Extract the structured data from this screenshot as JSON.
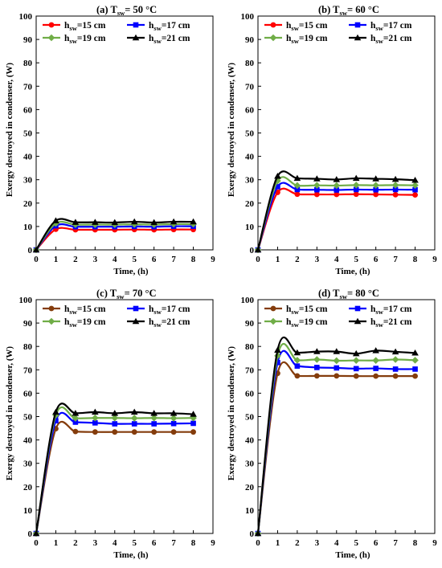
{
  "chart_data": [
    {
      "type": "line",
      "title": "(a) T_sw= 50 °C",
      "title_prefix": "(a) T",
      "title_sub": "sw",
      "title_suffix": "= 50 °C",
      "xlabel": "Time, (h)",
      "ylabel": "Exergy destroyed in condenser, (W)",
      "xlim": [
        0,
        9
      ],
      "ylim": [
        0,
        100
      ],
      "xticks": [
        "0",
        "1",
        "2",
        "3",
        "4",
        "5",
        "6",
        "7",
        "8",
        "9"
      ],
      "yticks": [
        "0",
        "10",
        "20",
        "30",
        "40",
        "50",
        "60",
        "70",
        "80",
        "90",
        "100"
      ],
      "grid": false,
      "legend_position": "top",
      "x": [
        0,
        1,
        2,
        3,
        4,
        5,
        6,
        7,
        8
      ],
      "series": [
        {
          "name_prefix": "h",
          "name_sub": "sw",
          "name_suffix": "=15 cm",
          "color": "#ff0000",
          "marker": "circle",
          "values": [
            0,
            8.8,
            8.6,
            8.6,
            8.6,
            8.7,
            8.6,
            8.7,
            8.7
          ]
        },
        {
          "name_prefix": "h",
          "name_sub": "sw",
          "name_suffix": "=17 cm",
          "color": "#0000ff",
          "marker": "square",
          "values": [
            0,
            10.3,
            9.9,
            9.9,
            9.9,
            10.0,
            9.9,
            10.1,
            10.1
          ]
        },
        {
          "name_prefix": "h",
          "name_sub": "sw",
          "name_suffix": "=19 cm",
          "color": "#70ad47",
          "marker": "diamond",
          "values": [
            0,
            11.3,
            10.8,
            10.8,
            10.8,
            10.9,
            10.8,
            11.0,
            11.0
          ]
        },
        {
          "name_prefix": "h",
          "name_sub": "sw",
          "name_suffix": "=21 cm",
          "color": "#000000",
          "marker": "triangle",
          "values": [
            0,
            12.5,
            11.8,
            11.8,
            11.7,
            12.0,
            11.7,
            12.0,
            12.0
          ]
        }
      ]
    },
    {
      "type": "line",
      "title": "(b) T_sw= 60 °C",
      "title_prefix": "(b) T",
      "title_sub": "sw",
      "title_suffix": "= 60 °C",
      "xlabel": "Time, (h)",
      "ylabel": "Exergy destroyed in condenser, (W)",
      "xlim": [
        0,
        9
      ],
      "ylim": [
        0,
        100
      ],
      "xticks": [
        "0",
        "1",
        "2",
        "3",
        "4",
        "5",
        "6",
        "7",
        "8",
        "9"
      ],
      "yticks": [
        "0",
        "10",
        "20",
        "30",
        "40",
        "50",
        "60",
        "70",
        "80",
        "90",
        "100"
      ],
      "grid": false,
      "legend_position": "top",
      "x": [
        0,
        1,
        2,
        3,
        4,
        5,
        6,
        7,
        8
      ],
      "series": [
        {
          "name_prefix": "h",
          "name_sub": "sw",
          "name_suffix": "=15 cm",
          "color": "#ff0000",
          "marker": "circle",
          "values": [
            0,
            24.6,
            23.8,
            23.7,
            23.7,
            23.8,
            23.7,
            23.6,
            23.5
          ]
        },
        {
          "name_prefix": "h",
          "name_sub": "sw",
          "name_suffix": "=17 cm",
          "color": "#0000ff",
          "marker": "square",
          "values": [
            0,
            27.0,
            25.8,
            25.7,
            25.6,
            25.8,
            25.7,
            25.8,
            25.7
          ]
        },
        {
          "name_prefix": "h",
          "name_sub": "sw",
          "name_suffix": "=19 cm",
          "color": "#70ad47",
          "marker": "diamond",
          "values": [
            0,
            29.5,
            27.5,
            27.6,
            27.5,
            27.7,
            27.6,
            27.7,
            27.6
          ]
        },
        {
          "name_prefix": "h",
          "name_sub": "sw",
          "name_suffix": "=21 cm",
          "color": "#000000",
          "marker": "triangle",
          "values": [
            0,
            31.5,
            30.6,
            30.4,
            30.1,
            30.6,
            30.4,
            30.2,
            29.8
          ]
        }
      ]
    },
    {
      "type": "line",
      "title": "(c) T_sw= 70 °C",
      "title_prefix": "(c) T",
      "title_sub": "sw",
      "title_suffix": "= 70 °C",
      "xlabel": "Time, (h)",
      "ylabel": "Exergy destroyed in condenser, (W)",
      "xlim": [
        0,
        9
      ],
      "ylim": [
        0,
        100
      ],
      "xticks": [
        "0",
        "1",
        "2",
        "3",
        "4",
        "5",
        "6",
        "7",
        "8",
        "9"
      ],
      "yticks": [
        "0",
        "10",
        "20",
        "30",
        "40",
        "50",
        "60",
        "70",
        "80",
        "90",
        "100"
      ],
      "grid": false,
      "legend_position": "top",
      "x": [
        0,
        1,
        2,
        3,
        4,
        5,
        6,
        7,
        8
      ],
      "series": [
        {
          "name_prefix": "h",
          "name_sub": "sw",
          "name_suffix": "=15 cm",
          "color": "#843c0c",
          "marker": "circle",
          "values": [
            0,
            44.8,
            43.6,
            43.4,
            43.4,
            43.4,
            43.4,
            43.4,
            43.4
          ]
        },
        {
          "name_prefix": "h",
          "name_sub": "sw",
          "name_suffix": "=17 cm",
          "color": "#0000ff",
          "marker": "square",
          "values": [
            0,
            48.2,
            47.6,
            47.3,
            46.9,
            46.9,
            46.9,
            47.0,
            47.1
          ]
        },
        {
          "name_prefix": "h",
          "name_sub": "sw",
          "name_suffix": "=19 cm",
          "color": "#70ad47",
          "marker": "diamond",
          "values": [
            0,
            50.6,
            49.3,
            49.4,
            49.4,
            49.3,
            49.4,
            49.3,
            49.4
          ]
        },
        {
          "name_prefix": "h",
          "name_sub": "sw",
          "name_suffix": "=21 cm",
          "color": "#000000",
          "marker": "triangle",
          "values": [
            0,
            51.9,
            51.4,
            51.9,
            51.4,
            51.9,
            51.4,
            51.4,
            51.0
          ]
        }
      ]
    },
    {
      "type": "line",
      "title": "(d) T_sw= 80 °C",
      "title_prefix": "(d) T",
      "title_sub": "sw",
      "title_suffix": "= 80 °C",
      "xlabel": "Time, (h)",
      "ylabel": "Exergy destroyed in condenser, (W)",
      "xlim": [
        0,
        9
      ],
      "ylim": [
        0,
        100
      ],
      "xticks": [
        "0",
        "1",
        "2",
        "3",
        "4",
        "5",
        "6",
        "7",
        "8",
        "9"
      ],
      "yticks": [
        "0",
        "10",
        "20",
        "30",
        "40",
        "50",
        "60",
        "70",
        "80",
        "90",
        "100"
      ],
      "grid": false,
      "legend_position": "top",
      "x": [
        0,
        1,
        2,
        3,
        4,
        5,
        6,
        7,
        8
      ],
      "series": [
        {
          "name_prefix": "h",
          "name_sub": "sw",
          "name_suffix": "=15 cm",
          "color": "#843c0c",
          "marker": "circle",
          "values": [
            0,
            68.5,
            67.4,
            67.4,
            67.4,
            67.3,
            67.3,
            67.3,
            67.3
          ]
        },
        {
          "name_prefix": "h",
          "name_sub": "sw",
          "name_suffix": "=17 cm",
          "color": "#0000ff",
          "marker": "square",
          "values": [
            0,
            73.1,
            71.6,
            71.0,
            70.8,
            70.5,
            70.6,
            70.3,
            70.3
          ]
        },
        {
          "name_prefix": "h",
          "name_sub": "sw",
          "name_suffix": "=19 cm",
          "color": "#70ad47",
          "marker": "diamond",
          "values": [
            0,
            76.0,
            74.1,
            74.4,
            73.9,
            74.0,
            74.0,
            74.4,
            74.1
          ]
        },
        {
          "name_prefix": "h",
          "name_sub": "sw",
          "name_suffix": "=21 cm",
          "color": "#000000",
          "marker": "triangle",
          "values": [
            0,
            78.4,
            77.3,
            77.8,
            77.8,
            76.9,
            78.2,
            77.7,
            77.2
          ]
        }
      ]
    }
  ]
}
